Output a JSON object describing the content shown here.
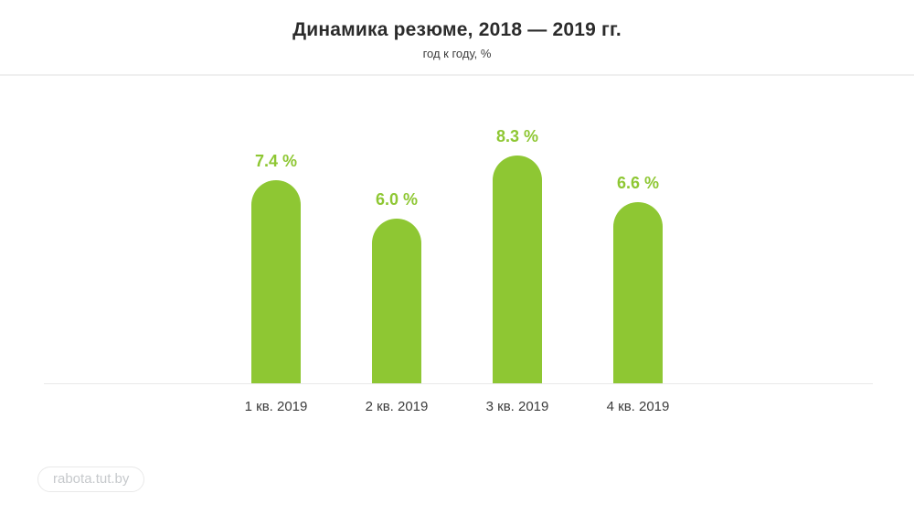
{
  "header": {
    "title": "Динамика резюме, 2018 — 2019 гг.",
    "subtitle": "год к году, %"
  },
  "footer": {
    "source_label": "rabota.tut.by"
  },
  "chart_data": {
    "type": "bar",
    "categories": [
      "1 кв. 2019",
      "2 кв. 2019",
      "3 кв. 2019",
      "4 кв. 2019"
    ],
    "values": [
      7.4,
      6.0,
      8.3,
      6.6
    ],
    "value_labels": [
      "7.4 %",
      "6.0 %",
      "8.3 %",
      "6.6 %"
    ],
    "title": "Динамика резюме, 2018 — 2019 гг.",
    "subtitle": "год к году, %",
    "xlabel": "",
    "ylabel": "год к году, %",
    "ylim": [
      0,
      9
    ],
    "grid": false,
    "legend": false,
    "y_axis_visible": false,
    "bar_color": "#8ec733",
    "value_label_color": "#8ec733",
    "axis_label_color": "#3c3c3c",
    "baseline_color": "#e9e9e9"
  }
}
